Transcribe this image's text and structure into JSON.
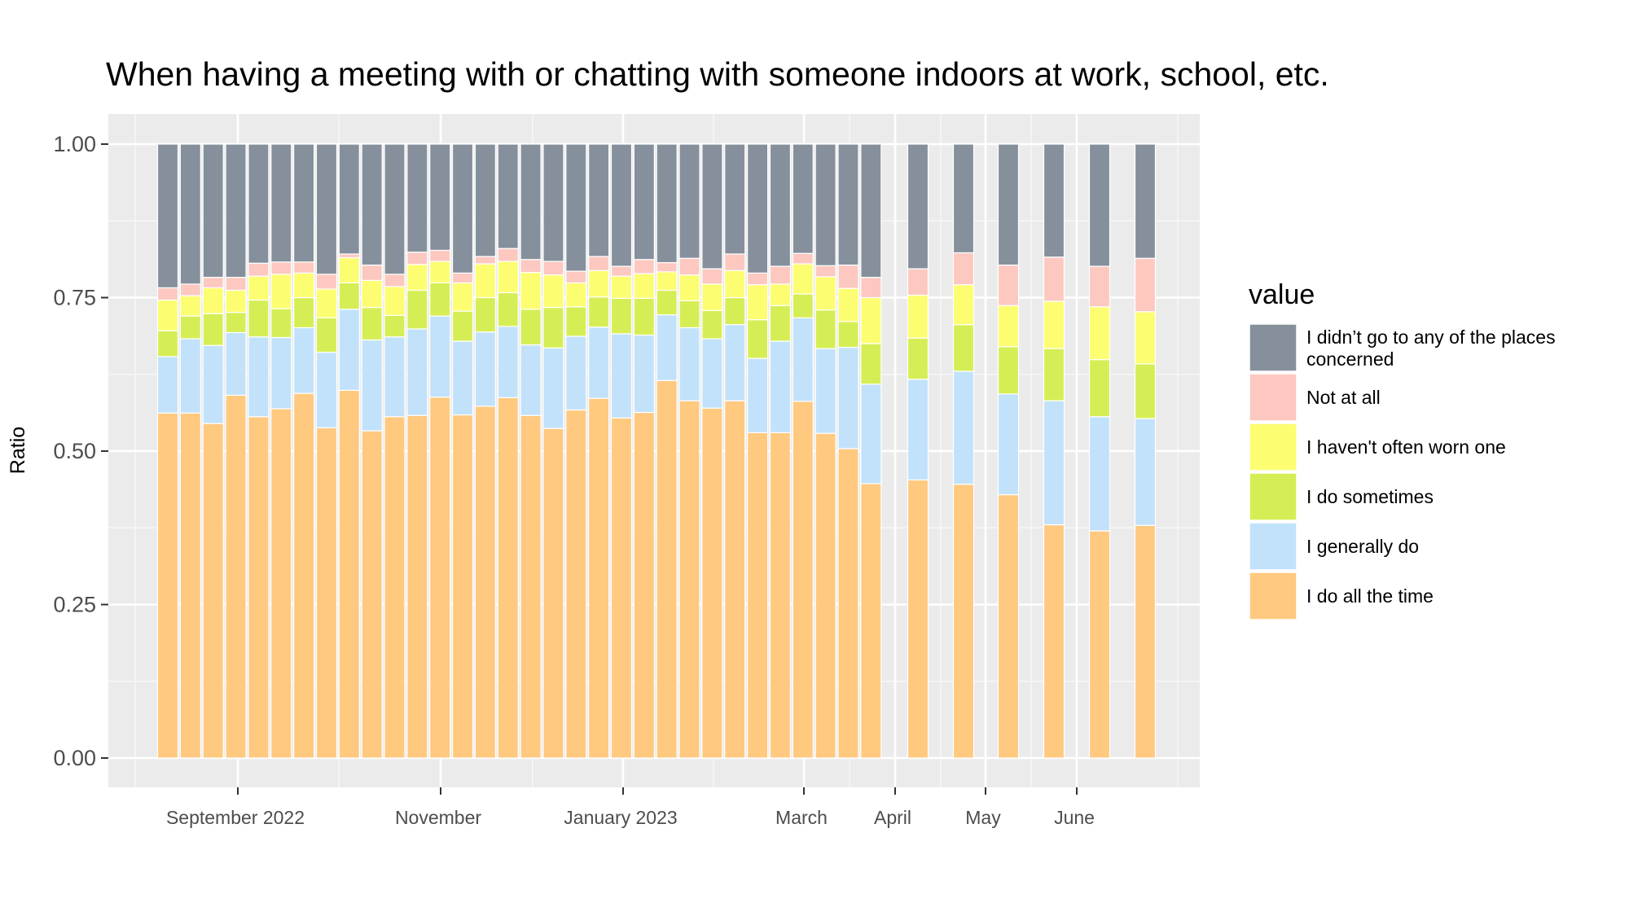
{
  "chart_data": {
    "type": "bar",
    "stacked": true,
    "title": "When having a meeting with or chatting with someone indoors at work, school, etc.",
    "xlabel": "",
    "ylabel": "Ratio",
    "ylim": [
      0,
      1
    ],
    "yticks": [
      "0.00",
      "0.25",
      "0.50",
      "0.75",
      "1.00"
    ],
    "x_tick_labels": [
      {
        "label": "September 2022",
        "date": "2022-09-01"
      },
      {
        "label": "November",
        "date": "2022-11-01"
      },
      {
        "label": "January 2023",
        "date": "2023-01-01"
      },
      {
        "label": "March",
        "date": "2023-03-01"
      },
      {
        "label": "April",
        "date": "2023-04-01"
      },
      {
        "label": "May",
        "date": "2023-05-01"
      },
      {
        "label": "June",
        "date": "2023-06-01"
      }
    ],
    "grid": true,
    "legend": {
      "title": "value",
      "position": "right"
    },
    "series": [
      {
        "name": "I do all the time",
        "color": "#ffc980",
        "values": [
          0.562,
          0.562,
          0.545,
          0.591,
          0.556,
          0.569,
          0.594,
          0.538,
          0.599,
          0.533,
          0.556,
          0.558,
          0.588,
          0.559,
          0.573,
          0.587,
          0.558,
          0.537,
          0.567,
          0.586,
          0.554,
          0.563,
          0.615,
          0.582,
          0.57,
          0.582,
          0.53,
          0.53,
          0.581,
          0.529,
          0.504,
          0.447,
          0.453,
          0.446,
          0.429,
          0.38,
          0.37,
          0.379
        ]
      },
      {
        "name": "I generally do",
        "color": "#c2e2fb",
        "values": [
          0.092,
          0.121,
          0.127,
          0.102,
          0.13,
          0.116,
          0.107,
          0.123,
          0.132,
          0.148,
          0.13,
          0.141,
          0.132,
          0.12,
          0.121,
          0.116,
          0.115,
          0.131,
          0.12,
          0.116,
          0.137,
          0.126,
          0.107,
          0.119,
          0.113,
          0.124,
          0.121,
          0.149,
          0.136,
          0.138,
          0.165,
          0.162,
          0.164,
          0.184,
          0.164,
          0.202,
          0.186,
          0.174
        ]
      },
      {
        "name": "I do sometimes",
        "color": "#d6ee55",
        "values": [
          0.042,
          0.037,
          0.052,
          0.033,
          0.06,
          0.047,
          0.049,
          0.056,
          0.043,
          0.053,
          0.035,
          0.063,
          0.054,
          0.049,
          0.056,
          0.055,
          0.058,
          0.066,
          0.048,
          0.049,
          0.058,
          0.06,
          0.04,
          0.044,
          0.046,
          0.044,
          0.063,
          0.058,
          0.039,
          0.063,
          0.042,
          0.066,
          0.067,
          0.076,
          0.077,
          0.085,
          0.093,
          0.089
        ]
      },
      {
        "name": "I haven't often worn one",
        "color": "#fdfd72",
        "values": [
          0.05,
          0.033,
          0.042,
          0.036,
          0.039,
          0.056,
          0.04,
          0.047,
          0.041,
          0.044,
          0.047,
          0.042,
          0.035,
          0.046,
          0.055,
          0.051,
          0.06,
          0.053,
          0.039,
          0.043,
          0.036,
          0.04,
          0.03,
          0.042,
          0.043,
          0.044,
          0.057,
          0.035,
          0.049,
          0.054,
          0.054,
          0.075,
          0.07,
          0.065,
          0.067,
          0.077,
          0.086,
          0.085
        ]
      },
      {
        "name": "Not at all",
        "color": "#fdc8c0",
        "values": [
          0.02,
          0.019,
          0.017,
          0.021,
          0.021,
          0.02,
          0.018,
          0.024,
          0.006,
          0.025,
          0.02,
          0.02,
          0.018,
          0.016,
          0.012,
          0.021,
          0.021,
          0.022,
          0.019,
          0.023,
          0.016,
          0.023,
          0.015,
          0.027,
          0.025,
          0.027,
          0.019,
          0.029,
          0.017,
          0.018,
          0.038,
          0.033,
          0.043,
          0.052,
          0.066,
          0.072,
          0.066,
          0.087
        ]
      },
      {
        "name": "I didn’t go to any of the places concerned",
        "color": "#85909c",
        "values": [
          0.234,
          0.228,
          0.217,
          0.217,
          0.194,
          0.192,
          0.192,
          0.212,
          0.179,
          0.197,
          0.212,
          0.176,
          0.173,
          0.21,
          0.183,
          0.17,
          0.188,
          0.191,
          0.207,
          0.183,
          0.199,
          0.188,
          0.193,
          0.186,
          0.203,
          0.179,
          0.21,
          0.199,
          0.178,
          0.198,
          0.197,
          0.217,
          0.203,
          0.177,
          0.197,
          0.184,
          0.199,
          0.186
        ]
      }
    ]
  }
}
